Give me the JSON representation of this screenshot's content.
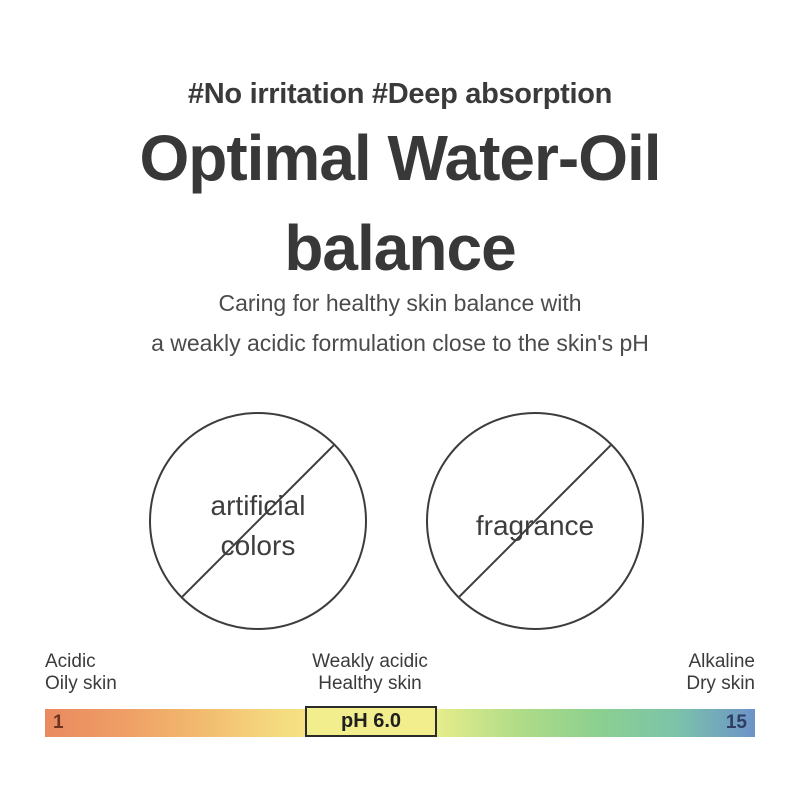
{
  "header": {
    "hashtags": "#No irritation #Deep absorption",
    "title_line1": "Optimal Water-Oil",
    "title_line2": "balance",
    "subtitle_line1": "Caring for healthy skin balance with",
    "subtitle_line2": "a weakly acidic formulation close to the skin's pH"
  },
  "free_from": [
    {
      "line1": "artificial",
      "line2": "colors"
    },
    {
      "line1": "fragrance"
    }
  ],
  "ph_scale": {
    "left_label_line1": "Acidic",
    "left_label_line2": "Oily skin",
    "center_label_line1": "Weakly acidic",
    "center_label_line2": "Healthy skin",
    "right_label_line1": "Alkaline",
    "right_label_line2": "Dry skin",
    "min_value": "1",
    "max_value": "15",
    "marker_label": "pH 6.0",
    "marker_fill": "#f3ee8d",
    "min_value_color": "#6f3322",
    "max_value_color": "#2e3d62",
    "gradient_stops": [
      "#e98a60",
      "#ef9f66",
      "#f2bb6f",
      "#f5dc80",
      "#f4ec8c",
      "#e4ec8b",
      "#b0dc88",
      "#8cd08f",
      "#7cc3a9",
      "#6c93c9"
    ]
  },
  "colors": {
    "text_dark": "#383838",
    "text_medium": "#4b4b4b",
    "sign_stroke": "#3c3c3c",
    "background": "#ffffff"
  }
}
